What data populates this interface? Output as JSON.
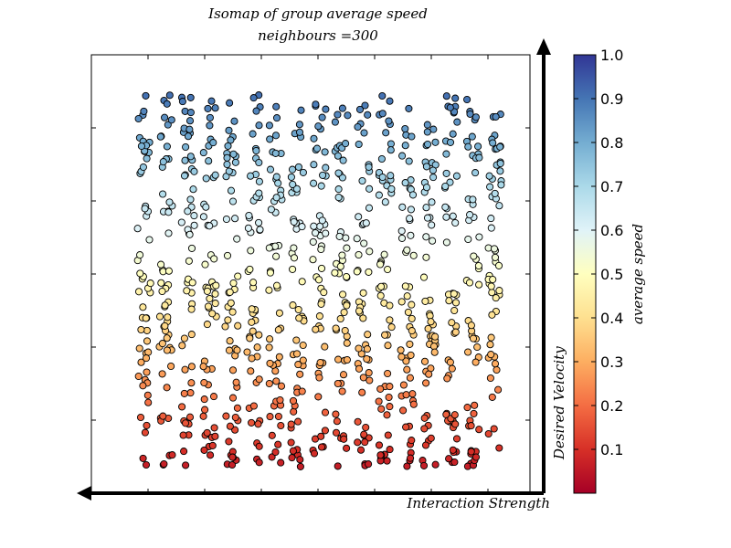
{
  "chart_data": {
    "type": "scatter",
    "title": "Isomap of group average speed",
    "subtitle": "neighbours =300",
    "xlabel": "Interaction Strength",
    "ylabel": "Desired Velocity",
    "xlim": [
      0,
      1
    ],
    "ylim": [
      0,
      1
    ],
    "x_ticks_labeled": false,
    "y_ticks_labeled": false,
    "grid": false,
    "colorbar": {
      "label": "average speed",
      "range": [
        0.0,
        1.0
      ],
      "ticks": [
        "0.1",
        "0.2",
        "0.3",
        "0.4",
        "0.5",
        "0.6",
        "0.7",
        "0.8",
        "0.9",
        "1.0"
      ],
      "colormap": "RdYlBu",
      "colors": [
        "#a50026",
        "#d73027",
        "#f46d43",
        "#fdae61",
        "#fee090",
        "#ffffbf",
        "#e0f3f8",
        "#abd9e9",
        "#74add1",
        "#4575b4",
        "#313695"
      ]
    },
    "columns_x": [
      0.12,
      0.17,
      0.22,
      0.27,
      0.32,
      0.37,
      0.42,
      0.47,
      0.52,
      0.57,
      0.62,
      0.67,
      0.72,
      0.77,
      0.82,
      0.87,
      0.92
    ],
    "points_per_column": 55,
    "y_range": [
      0.06,
      0.91
    ],
    "color_value_equals_y": true
  }
}
